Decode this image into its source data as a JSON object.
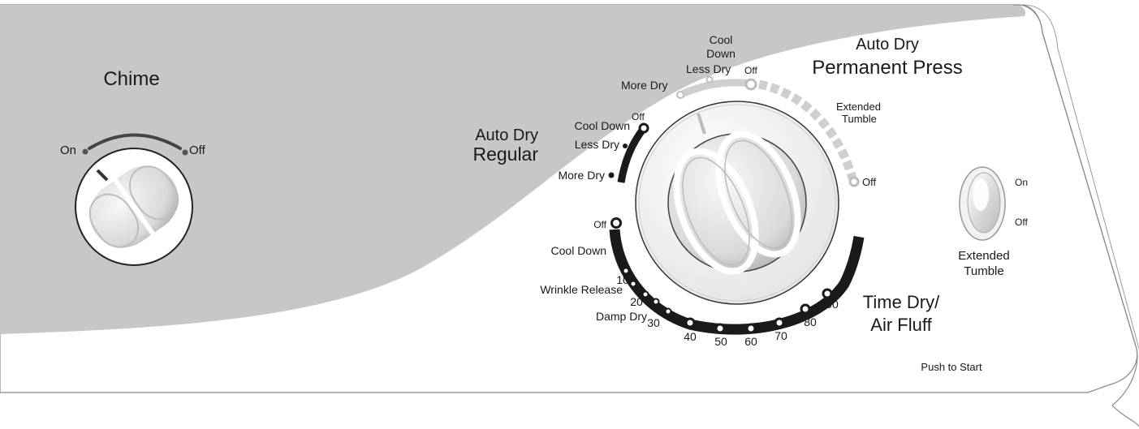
{
  "chime": {
    "title": "Chime",
    "on_label": "On",
    "off_label": "Off"
  },
  "auto_dry_regular": {
    "title_line1": "Auto Dry",
    "title_line2": "Regular",
    "settings": [
      "Off",
      "Cool Down",
      "Less Dry",
      "More Dry"
    ]
  },
  "auto_dry_permanent_press": {
    "title_line1": "Auto Dry",
    "title_line2": "Permanent Press",
    "cool_line1": "Cool",
    "cool_line2": "Down",
    "less_dry": "Less Dry",
    "more_dry": "More Dry",
    "off_top": "Off",
    "extended_line1": "Extended",
    "extended_line2": "Tumble",
    "off_end": "Off"
  },
  "time_dry": {
    "title_line1": "Time Dry/",
    "title_line2": "Air Fluff",
    "off": "Off",
    "cool_down": "Cool Down",
    "wrinkle_release": "Wrinkle Release",
    "damp_dry": "Damp Dry",
    "minutes": [
      "10",
      "20",
      "30",
      "40",
      "50",
      "60",
      "70",
      "80",
      "90"
    ]
  },
  "extended_tumble_switch": {
    "on_label": "On",
    "off_label": "Off",
    "title_line1": "Extended",
    "title_line2": "Tumble"
  },
  "push_to_start": "Push to Start",
  "colors": {
    "panel_gray": "#c7c7c7",
    "panel_white": "#ffffff",
    "text_dark": "#1a1a1a",
    "dark_arc": "#1a1a1a",
    "perm_press_arc": "#c8c8c8"
  }
}
